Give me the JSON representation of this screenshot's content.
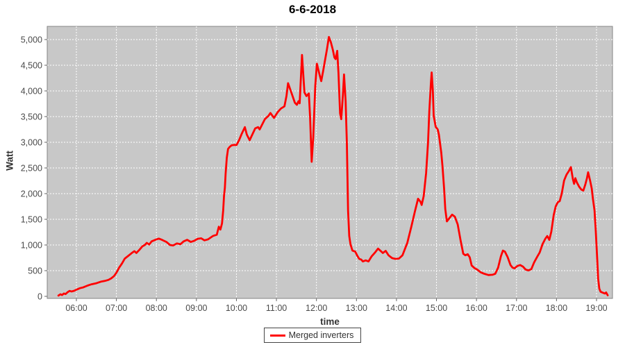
{
  "chart_data": {
    "type": "line",
    "title": "6-6-2018",
    "xlabel": "time",
    "ylabel": "Watt",
    "grid": true,
    "legend_position": "bottom",
    "colors": {
      "series": "#ff0000",
      "plot_background": "#c8c8c8",
      "gridline": "#ffffff",
      "plot_border": "#848484",
      "tick_text": "#4a4a4a"
    },
    "x_axis": {
      "unit": "time of day (hours)",
      "range_hours": [
        5.27,
        19.4
      ],
      "ticks": [
        {
          "v": 6,
          "label": "06:00"
        },
        {
          "v": 7,
          "label": "07:00"
        },
        {
          "v": 8,
          "label": "08:00"
        },
        {
          "v": 9,
          "label": "09:00"
        },
        {
          "v": 10,
          "label": "10:00"
        },
        {
          "v": 11,
          "label": "11:00"
        },
        {
          "v": 12,
          "label": "12:00"
        },
        {
          "v": 13,
          "label": "13:00"
        },
        {
          "v": 14,
          "label": "14:00"
        },
        {
          "v": 15,
          "label": "15:00"
        },
        {
          "v": 16,
          "label": "16:00"
        },
        {
          "v": 17,
          "label": "17:00"
        },
        {
          "v": 18,
          "label": "18:00"
        },
        {
          "v": 19,
          "label": "19:00"
        }
      ]
    },
    "y_axis": {
      "unit": "Watt",
      "range": [
        0,
        5250
      ],
      "ticks": [
        {
          "v": 0,
          "label": "0"
        },
        {
          "v": 500,
          "label": "500"
        },
        {
          "v": 1000,
          "label": "1,000"
        },
        {
          "v": 1500,
          "label": "1,500"
        },
        {
          "v": 2000,
          "label": "2,000"
        },
        {
          "v": 2500,
          "label": "2,500"
        },
        {
          "v": 3000,
          "label": "3,000"
        },
        {
          "v": 3500,
          "label": "3,500"
        },
        {
          "v": 4000,
          "label": "4,000"
        },
        {
          "v": 4500,
          "label": "4,500"
        },
        {
          "v": 5000,
          "label": "5,000"
        }
      ]
    },
    "series": [
      {
        "name": "Merged inverters",
        "color": "#ff0000",
        "points_format": "[hour_decimal, watts]",
        "points": [
          [
            5.55,
            15
          ],
          [
            5.6,
            40
          ],
          [
            5.64,
            25
          ],
          [
            5.69,
            55
          ],
          [
            5.73,
            45
          ],
          [
            5.78,
            80
          ],
          [
            5.83,
            105
          ],
          [
            5.88,
            95
          ],
          [
            5.95,
            110
          ],
          [
            6.0,
            130
          ],
          [
            6.09,
            160
          ],
          [
            6.17,
            175
          ],
          [
            6.28,
            210
          ],
          [
            6.38,
            235
          ],
          [
            6.5,
            255
          ],
          [
            6.61,
            285
          ],
          [
            6.71,
            300
          ],
          [
            6.8,
            320
          ],
          [
            6.87,
            350
          ],
          [
            6.94,
            395
          ],
          [
            7.0,
            460
          ],
          [
            7.07,
            560
          ],
          [
            7.14,
            640
          ],
          [
            7.21,
            735
          ],
          [
            7.3,
            790
          ],
          [
            7.38,
            840
          ],
          [
            7.45,
            880
          ],
          [
            7.5,
            845
          ],
          [
            7.58,
            910
          ],
          [
            7.65,
            975
          ],
          [
            7.71,
            1000
          ],
          [
            7.76,
            1040
          ],
          [
            7.82,
            1010
          ],
          [
            7.88,
            1070
          ],
          [
            8.0,
            1110
          ],
          [
            8.06,
            1125
          ],
          [
            8.14,
            1100
          ],
          [
            8.25,
            1060
          ],
          [
            8.34,
            1000
          ],
          [
            8.42,
            990
          ],
          [
            8.51,
            1030
          ],
          [
            8.6,
            1015
          ],
          [
            8.68,
            1070
          ],
          [
            8.77,
            1100
          ],
          [
            8.86,
            1060
          ],
          [
            8.94,
            1080
          ],
          [
            9.03,
            1120
          ],
          [
            9.12,
            1130
          ],
          [
            9.2,
            1090
          ],
          [
            9.29,
            1110
          ],
          [
            9.41,
            1175
          ],
          [
            9.51,
            1200
          ],
          [
            9.56,
            1355
          ],
          [
            9.6,
            1300
          ],
          [
            9.64,
            1420
          ],
          [
            9.67,
            1675
          ],
          [
            9.69,
            1960
          ],
          [
            9.71,
            2110
          ],
          [
            9.73,
            2390
          ],
          [
            9.76,
            2700
          ],
          [
            9.79,
            2870
          ],
          [
            9.83,
            2910
          ],
          [
            9.88,
            2940
          ],
          [
            9.95,
            2950
          ],
          [
            10.0,
            2945
          ],
          [
            10.06,
            3030
          ],
          [
            10.13,
            3160
          ],
          [
            10.21,
            3295
          ],
          [
            10.26,
            3150
          ],
          [
            10.33,
            3040
          ],
          [
            10.47,
            3270
          ],
          [
            10.54,
            3295
          ],
          [
            10.58,
            3250
          ],
          [
            10.71,
            3450
          ],
          [
            10.8,
            3515
          ],
          [
            10.85,
            3570
          ],
          [
            10.94,
            3475
          ],
          [
            11.03,
            3585
          ],
          [
            11.11,
            3655
          ],
          [
            11.2,
            3700
          ],
          [
            11.25,
            3900
          ],
          [
            11.29,
            4150
          ],
          [
            11.38,
            3950
          ],
          [
            11.46,
            3770
          ],
          [
            11.51,
            3730
          ],
          [
            11.55,
            3800
          ],
          [
            11.58,
            3760
          ],
          [
            11.64,
            4700
          ],
          [
            11.7,
            3970
          ],
          [
            11.75,
            3900
          ],
          [
            11.81,
            3950
          ],
          [
            11.84,
            3500
          ],
          [
            11.88,
            2620
          ],
          [
            11.92,
            3100
          ],
          [
            11.97,
            4100
          ],
          [
            12.01,
            4530
          ],
          [
            12.07,
            4340
          ],
          [
            12.12,
            4190
          ],
          [
            12.17,
            4400
          ],
          [
            12.21,
            4580
          ],
          [
            12.26,
            4800
          ],
          [
            12.31,
            5050
          ],
          [
            12.36,
            4950
          ],
          [
            12.41,
            4800
          ],
          [
            12.45,
            4650
          ],
          [
            12.48,
            4620
          ],
          [
            12.52,
            4780
          ],
          [
            12.55,
            4350
          ],
          [
            12.59,
            3565
          ],
          [
            12.62,
            3450
          ],
          [
            12.66,
            3900
          ],
          [
            12.69,
            4320
          ],
          [
            12.73,
            3800
          ],
          [
            12.76,
            2975
          ],
          [
            12.79,
            1675
          ],
          [
            12.82,
            1175
          ],
          [
            12.85,
            1015
          ],
          [
            12.9,
            890
          ],
          [
            12.97,
            870
          ],
          [
            13.02,
            790
          ],
          [
            13.07,
            730
          ],
          [
            13.12,
            715
          ],
          [
            13.16,
            680
          ],
          [
            13.23,
            700
          ],
          [
            13.3,
            680
          ],
          [
            13.38,
            780
          ],
          [
            13.47,
            860
          ],
          [
            13.54,
            930
          ],
          [
            13.61,
            880
          ],
          [
            13.66,
            845
          ],
          [
            13.73,
            885
          ],
          [
            13.8,
            800
          ],
          [
            13.89,
            745
          ],
          [
            13.97,
            730
          ],
          [
            14.06,
            735
          ],
          [
            14.15,
            800
          ],
          [
            14.27,
            1040
          ],
          [
            14.37,
            1350
          ],
          [
            14.46,
            1650
          ],
          [
            14.54,
            1900
          ],
          [
            14.6,
            1840
          ],
          [
            14.63,
            1780
          ],
          [
            14.68,
            1950
          ],
          [
            14.74,
            2400
          ],
          [
            14.79,
            3000
          ],
          [
            14.82,
            3600
          ],
          [
            14.86,
            4150
          ],
          [
            14.88,
            4360
          ],
          [
            14.91,
            4000
          ],
          [
            14.93,
            3520
          ],
          [
            14.98,
            3300
          ],
          [
            15.03,
            3250
          ],
          [
            15.06,
            3150
          ],
          [
            15.12,
            2800
          ],
          [
            15.15,
            2530
          ],
          [
            15.19,
            2100
          ],
          [
            15.22,
            1700
          ],
          [
            15.26,
            1460
          ],
          [
            15.32,
            1520
          ],
          [
            15.39,
            1590
          ],
          [
            15.46,
            1550
          ],
          [
            15.53,
            1400
          ],
          [
            15.6,
            1100
          ],
          [
            15.67,
            830
          ],
          [
            15.72,
            800
          ],
          [
            15.78,
            820
          ],
          [
            15.83,
            760
          ],
          [
            15.88,
            600
          ],
          [
            15.95,
            550
          ],
          [
            16.02,
            520
          ],
          [
            16.1,
            470
          ],
          [
            16.19,
            440
          ],
          [
            16.3,
            415
          ],
          [
            16.4,
            420
          ],
          [
            16.47,
            440
          ],
          [
            16.54,
            560
          ],
          [
            16.61,
            780
          ],
          [
            16.66,
            890
          ],
          [
            16.71,
            870
          ],
          [
            16.78,
            760
          ],
          [
            16.85,
            610
          ],
          [
            16.9,
            560
          ],
          [
            16.95,
            545
          ],
          [
            17.02,
            590
          ],
          [
            17.09,
            610
          ],
          [
            17.16,
            580
          ],
          [
            17.23,
            520
          ],
          [
            17.3,
            505
          ],
          [
            17.37,
            530
          ],
          [
            17.44,
            660
          ],
          [
            17.51,
            760
          ],
          [
            17.58,
            855
          ],
          [
            17.65,
            1015
          ],
          [
            17.72,
            1120
          ],
          [
            17.77,
            1175
          ],
          [
            17.82,
            1100
          ],
          [
            17.87,
            1260
          ],
          [
            17.93,
            1580
          ],
          [
            17.98,
            1750
          ],
          [
            18.03,
            1830
          ],
          [
            18.08,
            1855
          ],
          [
            18.13,
            2000
          ],
          [
            18.19,
            2255
          ],
          [
            18.25,
            2370
          ],
          [
            18.31,
            2440
          ],
          [
            18.36,
            2515
          ],
          [
            18.41,
            2280
          ],
          [
            18.44,
            2190
          ],
          [
            18.47,
            2300
          ],
          [
            18.51,
            2215
          ],
          [
            18.57,
            2130
          ],
          [
            18.62,
            2080
          ],
          [
            18.67,
            2060
          ],
          [
            18.72,
            2180
          ],
          [
            18.76,
            2300
          ],
          [
            18.79,
            2415
          ],
          [
            18.84,
            2250
          ],
          [
            18.88,
            2100
          ],
          [
            18.91,
            1900
          ],
          [
            18.95,
            1675
          ],
          [
            18.98,
            1300
          ],
          [
            19.02,
            700
          ],
          [
            19.04,
            350
          ],
          [
            19.07,
            150
          ],
          [
            19.1,
            90
          ],
          [
            19.16,
            70
          ],
          [
            19.21,
            55
          ],
          [
            19.24,
            75
          ],
          [
            19.28,
            20
          ]
        ]
      }
    ]
  }
}
